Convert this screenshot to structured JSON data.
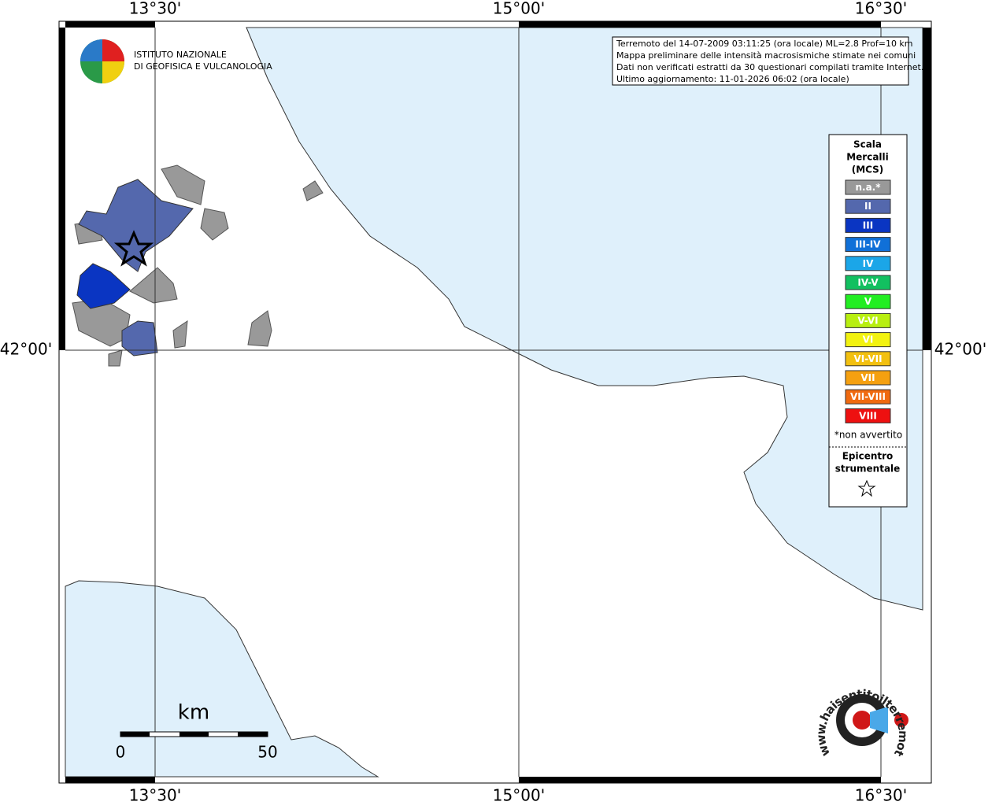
{
  "map": {
    "graticule": {
      "lon_labels": [
        "13°30'",
        "15°00'",
        "16°30'"
      ],
      "lat_labels": [
        "42°00'"
      ]
    },
    "info": [
      "Terremoto del 14-07-2009 03:11:25 (ora locale) ML=2.8 Prof=10 km",
      "Mappa preliminare delle intensità macrosismiche stimate nei comuni",
      "Dati non verificati estratti da 30 questionari compilati tramite Internet.",
      "Ultimo aggiornamento: 11-01-2026 06:02 (ora locale)"
    ],
    "institute": [
      "ISTITUTO NAZIONALE",
      "DI GEOFISICA E VULCANOLOGIA"
    ],
    "legend": {
      "title": [
        "Scala",
        "Mercalli",
        "(MCS)"
      ],
      "items": [
        {
          "label": "n.a.*",
          "color": "#999999"
        },
        {
          "label": "II",
          "color": "#5468ad"
        },
        {
          "label": "III",
          "color": "#0a35c2"
        },
        {
          "label": "III-IV",
          "color": "#1070d8"
        },
        {
          "label": "IV",
          "color": "#1ba6e8"
        },
        {
          "label": "IV-V",
          "color": "#12c060"
        },
        {
          "label": "V",
          "color": "#22ee22"
        },
        {
          "label": "V-VI",
          "color": "#b8ef10"
        },
        {
          "label": "VI",
          "color": "#f2f210"
        },
        {
          "label": "VI-VII",
          "color": "#f2c010"
        },
        {
          "label": "VII",
          "color": "#f5a010"
        },
        {
          "label": "VII-VIII",
          "color": "#f06a10"
        },
        {
          "label": "VIII",
          "color": "#ee1010"
        }
      ],
      "note": "*non avvertito",
      "epicenter": [
        "Epicentro",
        "strumentale"
      ]
    },
    "scale_bar": {
      "unit": "km",
      "ticks": [
        "0",
        "50"
      ]
    },
    "site_logo": "www.haisentitoilterremoto.it"
  }
}
